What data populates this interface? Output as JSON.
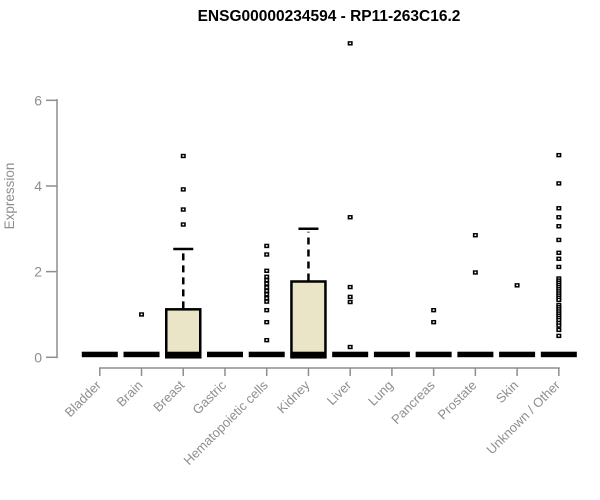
{
  "chart_data": {
    "type": "boxplot",
    "title": "ENSG00000234594 - RP11-263C16.2",
    "ylabel": "Expression",
    "xlabel": "",
    "yticks": [
      0,
      2,
      4,
      6
    ],
    "ylim": [
      0,
      6.1
    ],
    "grid": false,
    "legend": "none",
    "colors": {
      "box_fill": "#ebe5c8",
      "box_stroke": "#000000",
      "marker": "#000000",
      "marker_center": "#ffffff",
      "axis_text": "#8e8e8e",
      "axis_line": "#8e8e8e",
      "title_text": "#000000",
      "background": "#ffffff"
    },
    "categories": [
      "Bladder",
      "Brain",
      "Breast",
      "Gastric",
      "Hematopoietic cells",
      "Kidney",
      "Liver",
      "Lung",
      "Pancreas",
      "Prostate",
      "Skin",
      "Unknown / Other"
    ],
    "series": [
      {
        "name": "Bladder",
        "q1": 0,
        "median": 0,
        "q3": 0,
        "whisker_low": 0,
        "whisker_high": 0,
        "outliers": []
      },
      {
        "name": "Brain",
        "q1": 0,
        "median": 0,
        "q3": 0,
        "whisker_low": 0,
        "whisker_high": 0,
        "outliers": [
          1.0
        ]
      },
      {
        "name": "Breast",
        "q1": 0,
        "median": 0,
        "q3": 1.12,
        "whisker_low": 0,
        "whisker_high": 2.53,
        "outliers": [
          3.1,
          3.45,
          3.92,
          4.7
        ]
      },
      {
        "name": "Gastric",
        "q1": 0,
        "median": 0,
        "q3": 0,
        "whisker_low": 0,
        "whisker_high": 0,
        "outliers": []
      },
      {
        "name": "Hematopoietic cells",
        "q1": 0,
        "median": 0,
        "q3": 0,
        "whisker_low": 0,
        "whisker_high": 0,
        "outliers": [
          2.6,
          2.4,
          2.02,
          1.88,
          1.8,
          1.72,
          1.63,
          1.55,
          1.47,
          1.38,
          1.3,
          1.1,
          0.82,
          0.4
        ]
      },
      {
        "name": "Kidney",
        "q1": 0,
        "median": 0,
        "q3": 1.77,
        "whisker_low": 0,
        "whisker_high": 3.0,
        "outliers": []
      },
      {
        "name": "Liver",
        "q1": 0,
        "median": 0,
        "q3": 0,
        "whisker_low": 0,
        "whisker_high": 0,
        "outliers": [
          7.33,
          3.27,
          1.64,
          1.41,
          1.29,
          0.24
        ]
      },
      {
        "name": "Lung",
        "q1": 0,
        "median": 0,
        "q3": 0,
        "whisker_low": 0,
        "whisker_high": 0,
        "outliers": []
      },
      {
        "name": "Pancreas",
        "q1": 0,
        "median": 0,
        "q3": 0,
        "whisker_low": 0,
        "whisker_high": 0,
        "outliers": [
          1.1,
          0.82
        ]
      },
      {
        "name": "Prostate",
        "q1": 0,
        "median": 0,
        "q3": 0,
        "whisker_low": 0,
        "whisker_high": 0,
        "outliers": [
          2.85,
          1.98
        ]
      },
      {
        "name": "Skin",
        "q1": 0,
        "median": 0,
        "q3": 0,
        "whisker_low": 0,
        "whisker_high": 0,
        "outliers": [
          1.68
        ]
      },
      {
        "name": "Unknown / Other",
        "q1": 0,
        "median": 0,
        "q3": 0,
        "whisker_low": 0,
        "whisker_high": 0,
        "outliers": [
          4.72,
          4.06,
          3.48,
          3.27,
          3.06,
          2.74,
          2.44,
          2.3,
          2.11,
          1.84,
          1.79,
          1.74,
          1.69,
          1.64,
          1.59,
          1.54,
          1.49,
          1.44,
          1.39,
          1.34,
          1.22,
          1.17,
          1.12,
          1.07,
          1.02,
          0.97,
          0.92,
          0.87,
          0.8,
          0.74,
          0.64,
          0.5
        ]
      }
    ]
  }
}
